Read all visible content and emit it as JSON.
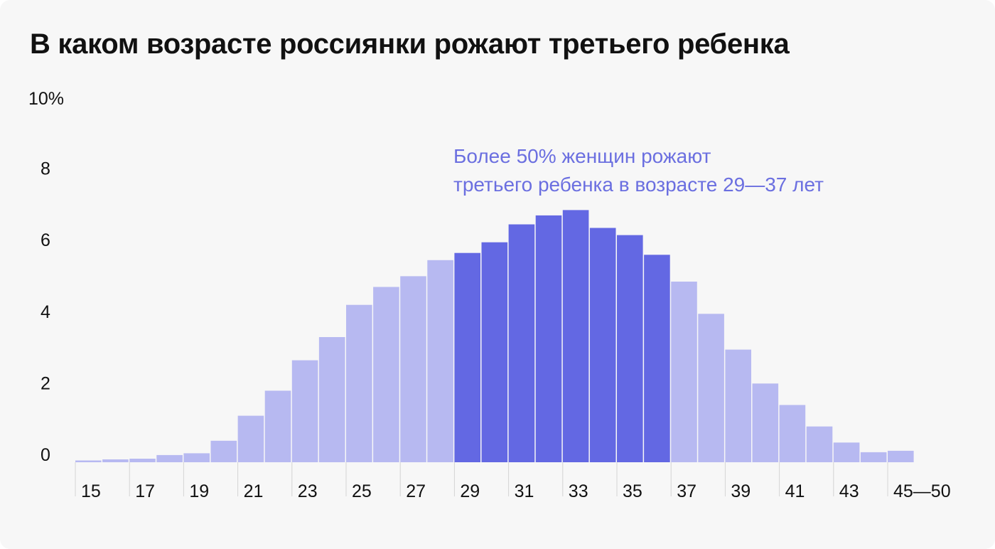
{
  "title": "В каком возрасте россиянки рожают третьего ребенка",
  "y_unit_label": "10%",
  "annotation": {
    "line1": "Более 50% женщин рожают",
    "line2": "третьего ребенка в возрасте 29—37 лет"
  },
  "colors": {
    "bar_light": "#b7b9f1",
    "bar_highlight": "#6368e3",
    "text": "#111111",
    "annotation": "#6b6fe0",
    "background": "#f7f7f7"
  },
  "chart_data": {
    "type": "bar",
    "categories": [
      "15",
      "16",
      "17",
      "18",
      "19",
      "20",
      "21",
      "22",
      "23",
      "24",
      "25",
      "26",
      "27",
      "28",
      "29",
      "30",
      "31",
      "32",
      "33",
      "34",
      "35",
      "36",
      "37",
      "38",
      "39",
      "40",
      "41",
      "42",
      "43",
      "44",
      "45—50"
    ],
    "values": [
      0.05,
      0.08,
      0.1,
      0.2,
      0.25,
      0.6,
      1.3,
      2.0,
      2.85,
      3.5,
      4.4,
      4.9,
      5.2,
      5.65,
      5.85,
      6.15,
      6.65,
      6.9,
      7.05,
      6.55,
      6.35,
      5.8,
      5.05,
      4.15,
      3.15,
      2.2,
      1.6,
      1.0,
      0.55,
      0.28,
      0.32
    ],
    "highlight_range": [
      "29",
      "36"
    ],
    "x_tick_labels": [
      "15",
      "17",
      "19",
      "21",
      "23",
      "25",
      "27",
      "29",
      "31",
      "33",
      "35",
      "37",
      "39",
      "41",
      "43",
      "45—50"
    ],
    "y_ticks": [
      "0",
      "2",
      "4",
      "6",
      "8"
    ],
    "ylim": [
      0,
      10
    ],
    "title": "В каком возрасте россиянки рожают третьего ребенка",
    "xlabel": "",
    "ylabel": "",
    "grid": false
  }
}
